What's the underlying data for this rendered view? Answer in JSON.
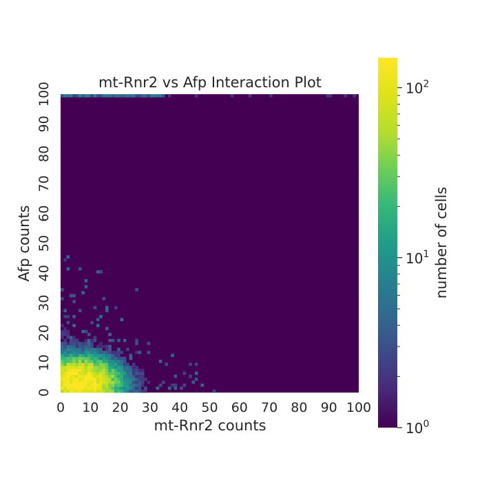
{
  "chart_data": {
    "type": "heatmap",
    "title": "mt-Rnr2 vs Afp Interaction Plot",
    "xlabel": "mt-Rnr2 counts",
    "ylabel": "Afp counts",
    "xlim": [
      0,
      100
    ],
    "ylim": [
      0,
      100
    ],
    "x_ticks": [
      "0",
      "10",
      "20",
      "30",
      "40",
      "50",
      "60",
      "70",
      "80",
      "90",
      "100"
    ],
    "y_ticks": [
      "0",
      "10",
      "20",
      "30",
      "40",
      "50",
      "60",
      "70",
      "80",
      "90",
      "100"
    ],
    "colorbar": {
      "label": "number of cells",
      "scale": "log",
      "range": [
        1,
        150
      ],
      "colormap": "viridis",
      "tick_labels": [
        {
          "base": "10",
          "exp": "0",
          "value": 1
        },
        {
          "base": "10",
          "exp": "1",
          "value": 10
        },
        {
          "base": "10",
          "exp": "2",
          "value": 100
        }
      ]
    },
    "grid": false,
    "background_value_color": "#440154"
  }
}
